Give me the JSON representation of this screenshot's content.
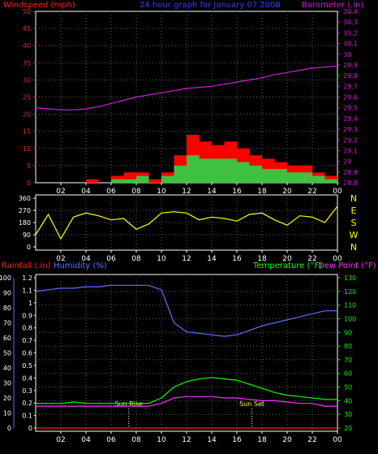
{
  "header": {
    "left_label": "Windspeed (mph)",
    "center_label": "24 hour graph for January 07 2008",
    "right_label": "Barometer (.in)"
  },
  "colors": {
    "bg": "#000000",
    "axis": "#ffffff",
    "grid": "#606060",
    "wind_axis": "#ff2020",
    "baro": "#d020d0",
    "wind_gust": "#ff0000",
    "wind_avg": "#40c040",
    "wind_low": "#e0f0e0",
    "direction": "#ffff00",
    "rain": "#ff2020",
    "humidity": "#6070ff",
    "temperature": "#00ff00",
    "dewpoint": "#ff30ff",
    "sun": "#ffff00"
  },
  "time_ticks": [
    "02",
    "04",
    "06",
    "08",
    "10",
    "12",
    "14",
    "16",
    "18",
    "20",
    "22",
    "00"
  ],
  "chart_data": [
    {
      "type": "area",
      "title": "24 hour graph for January 07 2008",
      "ylabel_left": "Windspeed (mph)",
      "ylabel_right": "Barometer (.in)",
      "ylim_left": [
        0,
        50
      ],
      "yticks_left": [
        "0",
        "5",
        "10",
        "15",
        "20",
        "25",
        "30",
        "35",
        "40",
        "45",
        "50"
      ],
      "ylim_right": [
        28.8,
        30.4
      ],
      "yticks_right": [
        "28.8",
        "28.9",
        "29",
        "29.1",
        "29.2",
        "29.3",
        "29.4",
        "29.5",
        "29.6",
        "29.7",
        "29.8",
        "29.9",
        "30",
        "30.1",
        "30.2",
        "30.3",
        "30.4"
      ],
      "x_hours": [
        0,
        1,
        2,
        3,
        4,
        5,
        6,
        7,
        8,
        9,
        10,
        11,
        12,
        13,
        14,
        15,
        16,
        17,
        18,
        19,
        20,
        21,
        22,
        23,
        24
      ],
      "series": [
        {
          "name": "Wind gust",
          "axis": "left",
          "values": [
            0,
            0,
            0,
            0,
            1,
            0,
            2,
            3,
            3,
            1,
            3,
            8,
            14,
            12,
            11,
            12,
            10,
            8,
            7,
            6,
            5,
            5,
            3,
            2,
            0
          ]
        },
        {
          "name": "Wind average",
          "axis": "left",
          "values": [
            0,
            0,
            0,
            0,
            0,
            0,
            1,
            1,
            2,
            0,
            2,
            5,
            8,
            7,
            7,
            7,
            6,
            5,
            4,
            4,
            3,
            3,
            2,
            1,
            0
          ]
        },
        {
          "name": "Barometer",
          "axis": "right",
          "values": [
            29.5,
            29.49,
            29.48,
            29.48,
            29.49,
            29.51,
            29.54,
            29.57,
            29.6,
            29.62,
            29.64,
            29.66,
            29.68,
            29.69,
            29.7,
            29.72,
            29.74,
            29.76,
            29.78,
            29.81,
            29.83,
            29.85,
            29.87,
            29.88,
            29.89
          ]
        }
      ]
    },
    {
      "type": "line",
      "title": "",
      "ylim": [
        0,
        360
      ],
      "yticks_left": [
        "0",
        "90",
        "180",
        "270",
        "360"
      ],
      "yticks_right": [
        "N",
        "W",
        "S",
        "E",
        "N"
      ],
      "x_hours": [
        0,
        1,
        2,
        3,
        4,
        5,
        6,
        7,
        8,
        9,
        10,
        11,
        12,
        13,
        14,
        15,
        16,
        17,
        18,
        19,
        20,
        21,
        22,
        23,
        24
      ],
      "series": [
        {
          "name": "Wind direction",
          "values": [
            90,
            240,
            60,
            220,
            250,
            230,
            200,
            210,
            130,
            170,
            250,
            260,
            250,
            200,
            220,
            210,
            190,
            240,
            250,
            200,
            160,
            230,
            220,
            180,
            300
          ]
        }
      ]
    },
    {
      "type": "line",
      "title": "",
      "ylabel_left_1": "Rainfall (.in)",
      "ylabel_left_2": "Humidity (%)",
      "ylabel_right": "Temperature (°F)",
      "ylabel_right_2": "Dew Point (°F)",
      "ylim_rain": [
        0,
        1.2
      ],
      "yticks_rain": [
        "0",
        "0.1",
        "0.2",
        "0.3",
        "0.4",
        "0.5",
        "0.6",
        "0.7",
        "0.8",
        "0.9",
        "1",
        "1.1",
        "1.2"
      ],
      "ylim_humidity": [
        0,
        100
      ],
      "yticks_humidity": [
        "0",
        "10",
        "20",
        "30",
        "40",
        "50",
        "60",
        "70",
        "80",
        "90",
        "100"
      ],
      "ylim_temp": [
        20,
        130
      ],
      "yticks_temp": [
        "20",
        "30",
        "40",
        "50",
        "60",
        "70",
        "80",
        "90",
        "100",
        "110",
        "120",
        "130"
      ],
      "x_hours": [
        0,
        1,
        2,
        3,
        4,
        5,
        6,
        7,
        8,
        9,
        10,
        11,
        12,
        13,
        14,
        15,
        16,
        17,
        18,
        19,
        20,
        21,
        22,
        23,
        24
      ],
      "annotations": [
        {
          "label": "Sun Rise",
          "hour": 7.4
        },
        {
          "label": "Sun Set",
          "hour": 17.2
        }
      ],
      "series": [
        {
          "name": "Humidity",
          "axis": "humidity",
          "values": [
            91,
            92,
            93,
            93,
            94,
            94,
            95,
            95,
            95,
            95,
            92,
            70,
            64,
            63,
            62,
            61,
            62,
            65,
            68,
            70,
            72,
            74,
            76,
            78,
            78
          ]
        },
        {
          "name": "Temperature",
          "axis": "temp",
          "values": [
            38,
            38,
            38,
            39,
            38,
            38,
            38,
            38,
            38,
            38,
            42,
            50,
            54,
            56,
            57,
            56,
            55,
            52,
            49,
            46,
            44,
            43,
            42,
            41,
            41
          ]
        },
        {
          "name": "Dew Point",
          "axis": "temp",
          "values": [
            36,
            36,
            36,
            36,
            36,
            36,
            36,
            36,
            36,
            36,
            38,
            42,
            43,
            43,
            43,
            42,
            42,
            41,
            40,
            40,
            39,
            38,
            38,
            36,
            36
          ]
        },
        {
          "name": "Rainfall",
          "axis": "rain",
          "values": [
            0,
            0,
            0,
            0,
            0,
            0,
            0,
            0,
            0,
            0,
            0,
            0,
            0,
            0,
            0,
            0,
            0,
            0,
            0,
            0,
            0,
            0,
            0,
            0,
            0
          ]
        }
      ]
    }
  ]
}
